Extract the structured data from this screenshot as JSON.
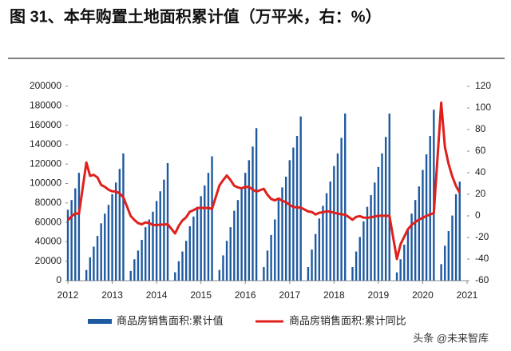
{
  "chart_data": {
    "type": "bar-line",
    "title": "图 31、本年购置土地面积累计值（万平米，右：%）",
    "watermark": "头条 @未来智库",
    "x": [
      2012.0,
      2012.083,
      2012.167,
      2012.25,
      2012.417,
      2012.5,
      2012.583,
      2012.667,
      2012.75,
      2012.833,
      2012.917,
      2013.0,
      2013.083,
      2013.167,
      2013.25,
      2013.417,
      2013.5,
      2013.583,
      2013.667,
      2013.75,
      2013.833,
      2013.917,
      2014.0,
      2014.083,
      2014.167,
      2014.25,
      2014.417,
      2014.5,
      2014.583,
      2014.667,
      2014.75,
      2014.833,
      2014.917,
      2015.0,
      2015.083,
      2015.167,
      2015.25,
      2015.417,
      2015.5,
      2015.583,
      2015.667,
      2015.75,
      2015.833,
      2015.917,
      2016.0,
      2016.083,
      2016.167,
      2016.25,
      2016.417,
      2016.5,
      2016.583,
      2016.667,
      2016.75,
      2016.833,
      2016.917,
      2017.0,
      2017.083,
      2017.167,
      2017.25,
      2017.417,
      2017.5,
      2017.583,
      2017.667,
      2017.75,
      2017.833,
      2017.917,
      2018.0,
      2018.083,
      2018.167,
      2018.25,
      2018.417,
      2018.5,
      2018.583,
      2018.667,
      2018.75,
      2018.833,
      2018.917,
      2019.0,
      2019.083,
      2019.167,
      2019.25,
      2019.417,
      2019.5,
      2019.583,
      2019.667,
      2019.75,
      2019.833,
      2019.917,
      2020.0,
      2020.083,
      2020.167,
      2020.25,
      2020.417,
      2020.5,
      2020.583,
      2020.667,
      2020.75,
      2020.833
    ],
    "series": [
      {
        "name": "商品房销售面积:累计值",
        "type": "bar",
        "axis": "y",
        "color": "#1f5aa0",
        "values": [
          73000,
          83000,
          95000,
          111000,
          11000,
          24000,
          35000,
          46000,
          59000,
          69000,
          78000,
          89000,
          101000,
          115000,
          131000,
          10000,
          22000,
          31000,
          42000,
          55000,
          63000,
          71000,
          82000,
          92000,
          104000,
          121000,
          8600,
          20000,
          30000,
          41000,
          56000,
          66000,
          76000,
          87000,
          98000,
          111000,
          128000,
          11000,
          26000,
          41000,
          55000,
          72000,
          83000,
          95000,
          111000,
          124000,
          138000,
          157000,
          14000,
          31000,
          47000,
          63000,
          83000,
          96000,
          107000,
          124000,
          137000,
          149000,
          169000,
          14000,
          32000,
          48000,
          64000,
          77000,
          90000,
          102000,
          118000,
          131000,
          147000,
          172000,
          14000,
          30000,
          45000,
          61000,
          76000,
          88000,
          101000,
          117000,
          131000,
          148000,
          172000,
          8500,
          22000,
          37000,
          53000,
          69000,
          83000,
          97000,
          114000,
          130000,
          149000,
          176000,
          17000,
          36000,
          51000,
          67000,
          89000,
          102000
        ]
      },
      {
        "name": "商品房销售面积:累计同比",
        "type": "line",
        "axis": "y2",
        "color": "#e0201b",
        "values": [
          -4.0,
          -0.5,
          2.4,
          1.8,
          49.5,
          37.1,
          38.0,
          35.6,
          28.7,
          26.9,
          24.2,
          22.8,
          22.6,
          20.8,
          17.3,
          -0.1,
          -3.8,
          -6.7,
          -7.8,
          -6.0,
          -6.7,
          -8.3,
          -8.6,
          -8.0,
          -8.2,
          -7.6,
          -16.3,
          -9.2,
          -4.2,
          -1.3,
          3.9,
          5.3,
          7.2,
          7.5,
          7.2,
          7.4,
          6.5,
          28.2,
          33.1,
          37.4,
          33.2,
          27.9,
          26.4,
          25.5,
          26.9,
          26.8,
          24.3,
          22.5,
          25.1,
          19.5,
          15.7,
          14.3,
          16.1,
          14.0,
          12.7,
          10.3,
          8.2,
          7.9,
          7.7,
          4.1,
          3.6,
          1.3,
          2.9,
          3.3,
          4.2,
          4.0,
          2.9,
          2.2,
          1.4,
          1.3,
          -3.6,
          -0.9,
          -0.3,
          -1.6,
          -1.8,
          -1.3,
          -0.6,
          0.1,
          0.1,
          0.2,
          -0.1,
          -39.9,
          -26.3,
          -19.3,
          -12.3,
          -8.4,
          -5.8,
          -3.3,
          -1.8,
          0.0,
          1.3,
          2.6,
          104.9,
          63.8,
          48.1,
          36.4,
          27.7,
          21.5
        ]
      }
    ],
    "xlim": [
      2012,
      2021
    ],
    "xticks": [
      2012,
      2013,
      2014,
      2015,
      2016,
      2017,
      2018,
      2019,
      2020,
      2021
    ],
    "ylim": [
      0,
      200000
    ],
    "yticks": [
      0,
      20000,
      40000,
      60000,
      80000,
      100000,
      120000,
      140000,
      160000,
      180000,
      200000
    ],
    "y2lim": [
      -60,
      120
    ],
    "y2ticks": [
      -60,
      -40,
      -20,
      0,
      20,
      40,
      60,
      80,
      100,
      120
    ],
    "grid": false,
    "legend": "bottom"
  }
}
